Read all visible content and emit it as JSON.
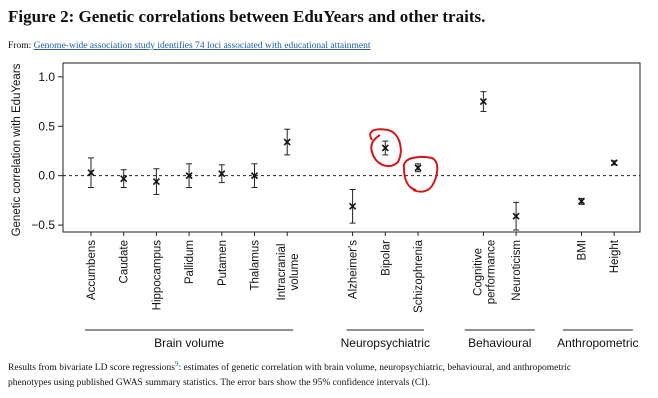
{
  "header": {
    "title": "Figure 2: Genetic correlations between EduYears and other traits.",
    "from_label": "From:",
    "source_link": "Genome-wide association study identifies 74 loci associated with educational attainment"
  },
  "chart_data": {
    "type": "errorbar",
    "y_label": "Genetic correlation with EduYears",
    "ylim": [
      -0.57,
      1.14
    ],
    "yticks": [
      {
        "value": -0.5,
        "label": "−0.5"
      },
      {
        "value": 0,
        "label": "0.0"
      },
      0.5,
      {
        "value": 1,
        "label": "1.0"
      }
    ],
    "reference_line": 0,
    "groups": [
      {
        "name": "Brain volume",
        "categories": [
          "Accumbens",
          "Caudate",
          "Hippocampus",
          "Pallidum",
          "Putamen",
          "Thalamus",
          "Intracranial volume"
        ],
        "values": [
          0.03,
          -0.03,
          -0.06,
          0.0,
          0.02,
          0.0,
          0.34
        ],
        "errors": [
          0.15,
          0.09,
          0.13,
          0.12,
          0.09,
          0.12,
          0.13
        ]
      },
      {
        "name": "Neuropsychiatric",
        "categories": [
          "Alzheimer's",
          "Bipolar",
          "Schizophrenia"
        ],
        "values": [
          -0.31,
          0.28,
          0.08
        ],
        "errors": [
          0.17,
          0.07,
          0.04
        ]
      },
      {
        "name": "Behavioural",
        "categories": [
          "Cognitive performance",
          "Neuroticism"
        ],
        "values": [
          0.75,
          -0.41
        ],
        "errors": [
          0.1,
          0.14
        ]
      },
      {
        "name": "Anthropometric",
        "categories": [
          "BMI",
          "Height"
        ],
        "values": [
          -0.26,
          0.13
        ],
        "errors": [
          0.03,
          0.02
        ]
      }
    ]
  },
  "caption": {
    "before": "Results from bivariate LD score regressions",
    "ref": "9",
    "after_line1": ": estimates of genetic correlation with brain volume, neuropsychiatric, behavioural, and anthropometric",
    "line2": "phenotypes using published GWAS summary statistics. The error bars show the 95% confidence intervals (CI)."
  }
}
